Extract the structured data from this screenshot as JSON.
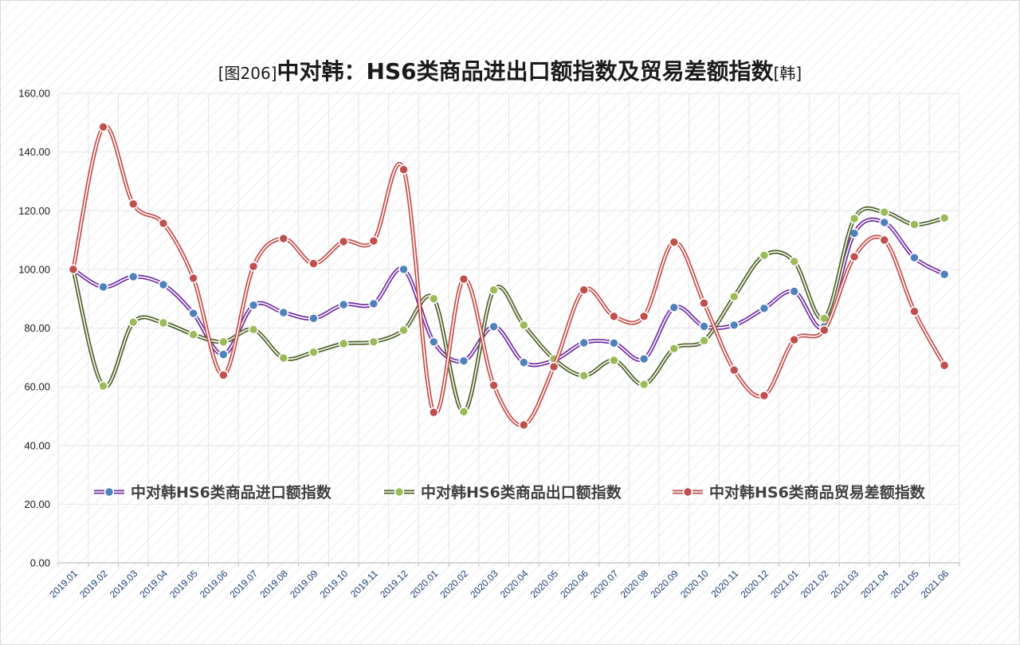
{
  "chart_data": {
    "type": "line",
    "title": {
      "prefix": "[图206]",
      "main": "中对韩：HS6类商品进出口额指数及贸易差额指数",
      "suffix": "[韩]"
    },
    "xlabel": "",
    "ylabel": "",
    "ylim": [
      0,
      160
    ],
    "y_ticks": [
      "0.00",
      "20.00",
      "40.00",
      "60.00",
      "80.00",
      "100.00",
      "120.00",
      "140.00",
      "160.00"
    ],
    "grid": true,
    "legend_position": "bottom-inside",
    "categories": [
      "2019.01",
      "2019.02",
      "2019.03",
      "2019.04",
      "2019.05",
      "2019.06",
      "2019.07",
      "2019.08",
      "2019.09",
      "2019.10",
      "2019.11",
      "2019.12",
      "2020.01",
      "2020.02",
      "2020.03",
      "2020.04",
      "2020.05",
      "2020.06",
      "2020.07",
      "2020.08",
      "2020.09",
      "2020.10",
      "2020.11",
      "2020.12",
      "2021.01",
      "2021.02",
      "2021.03",
      "2021.04",
      "2021.05",
      "2021.06"
    ],
    "series": [
      {
        "name": "中对韩HS6类商品进口额指数",
        "line_color": "#7030a0",
        "marker_color": "#4f81bd",
        "values": [
          100.0,
          94.0,
          97.5,
          94.8,
          85.0,
          71.0,
          87.8,
          85.3,
          83.3,
          88.0,
          88.3,
          100.0,
          75.3,
          68.8,
          80.5,
          68.3,
          69.0,
          75.0,
          74.9,
          69.5,
          87.0,
          80.6,
          81.0,
          86.7,
          92.5,
          80.5,
          112.3,
          116.0,
          104.0,
          98.3
        ]
      },
      {
        "name": "中对韩HS6类商品出口额指数",
        "line_color": "#4f6228",
        "marker_color": "#9bbb59",
        "values": [
          100.0,
          60.3,
          82.0,
          81.8,
          77.8,
          75.3,
          79.5,
          69.8,
          71.8,
          74.7,
          75.3,
          79.3,
          90.0,
          51.5,
          93.0,
          81.0,
          69.5,
          63.8,
          69.0,
          60.8,
          73.0,
          75.7,
          90.7,
          104.8,
          102.7,
          83.3,
          117.3,
          119.5,
          115.3,
          117.5
        ]
      },
      {
        "name": "中对韩HS6类商品贸易差额指数",
        "line_color": "#c0504d",
        "marker_color": "#c0504d",
        "values": [
          100.0,
          148.5,
          122.3,
          115.7,
          97.0,
          64.0,
          101.0,
          110.5,
          102.0,
          109.5,
          109.7,
          134.0,
          51.3,
          96.7,
          60.5,
          47.0,
          66.8,
          93.0,
          84.0,
          84.0,
          109.3,
          88.5,
          65.7,
          57.0,
          76.0,
          79.3,
          104.3,
          110.0,
          85.7,
          67.3
        ]
      }
    ]
  }
}
